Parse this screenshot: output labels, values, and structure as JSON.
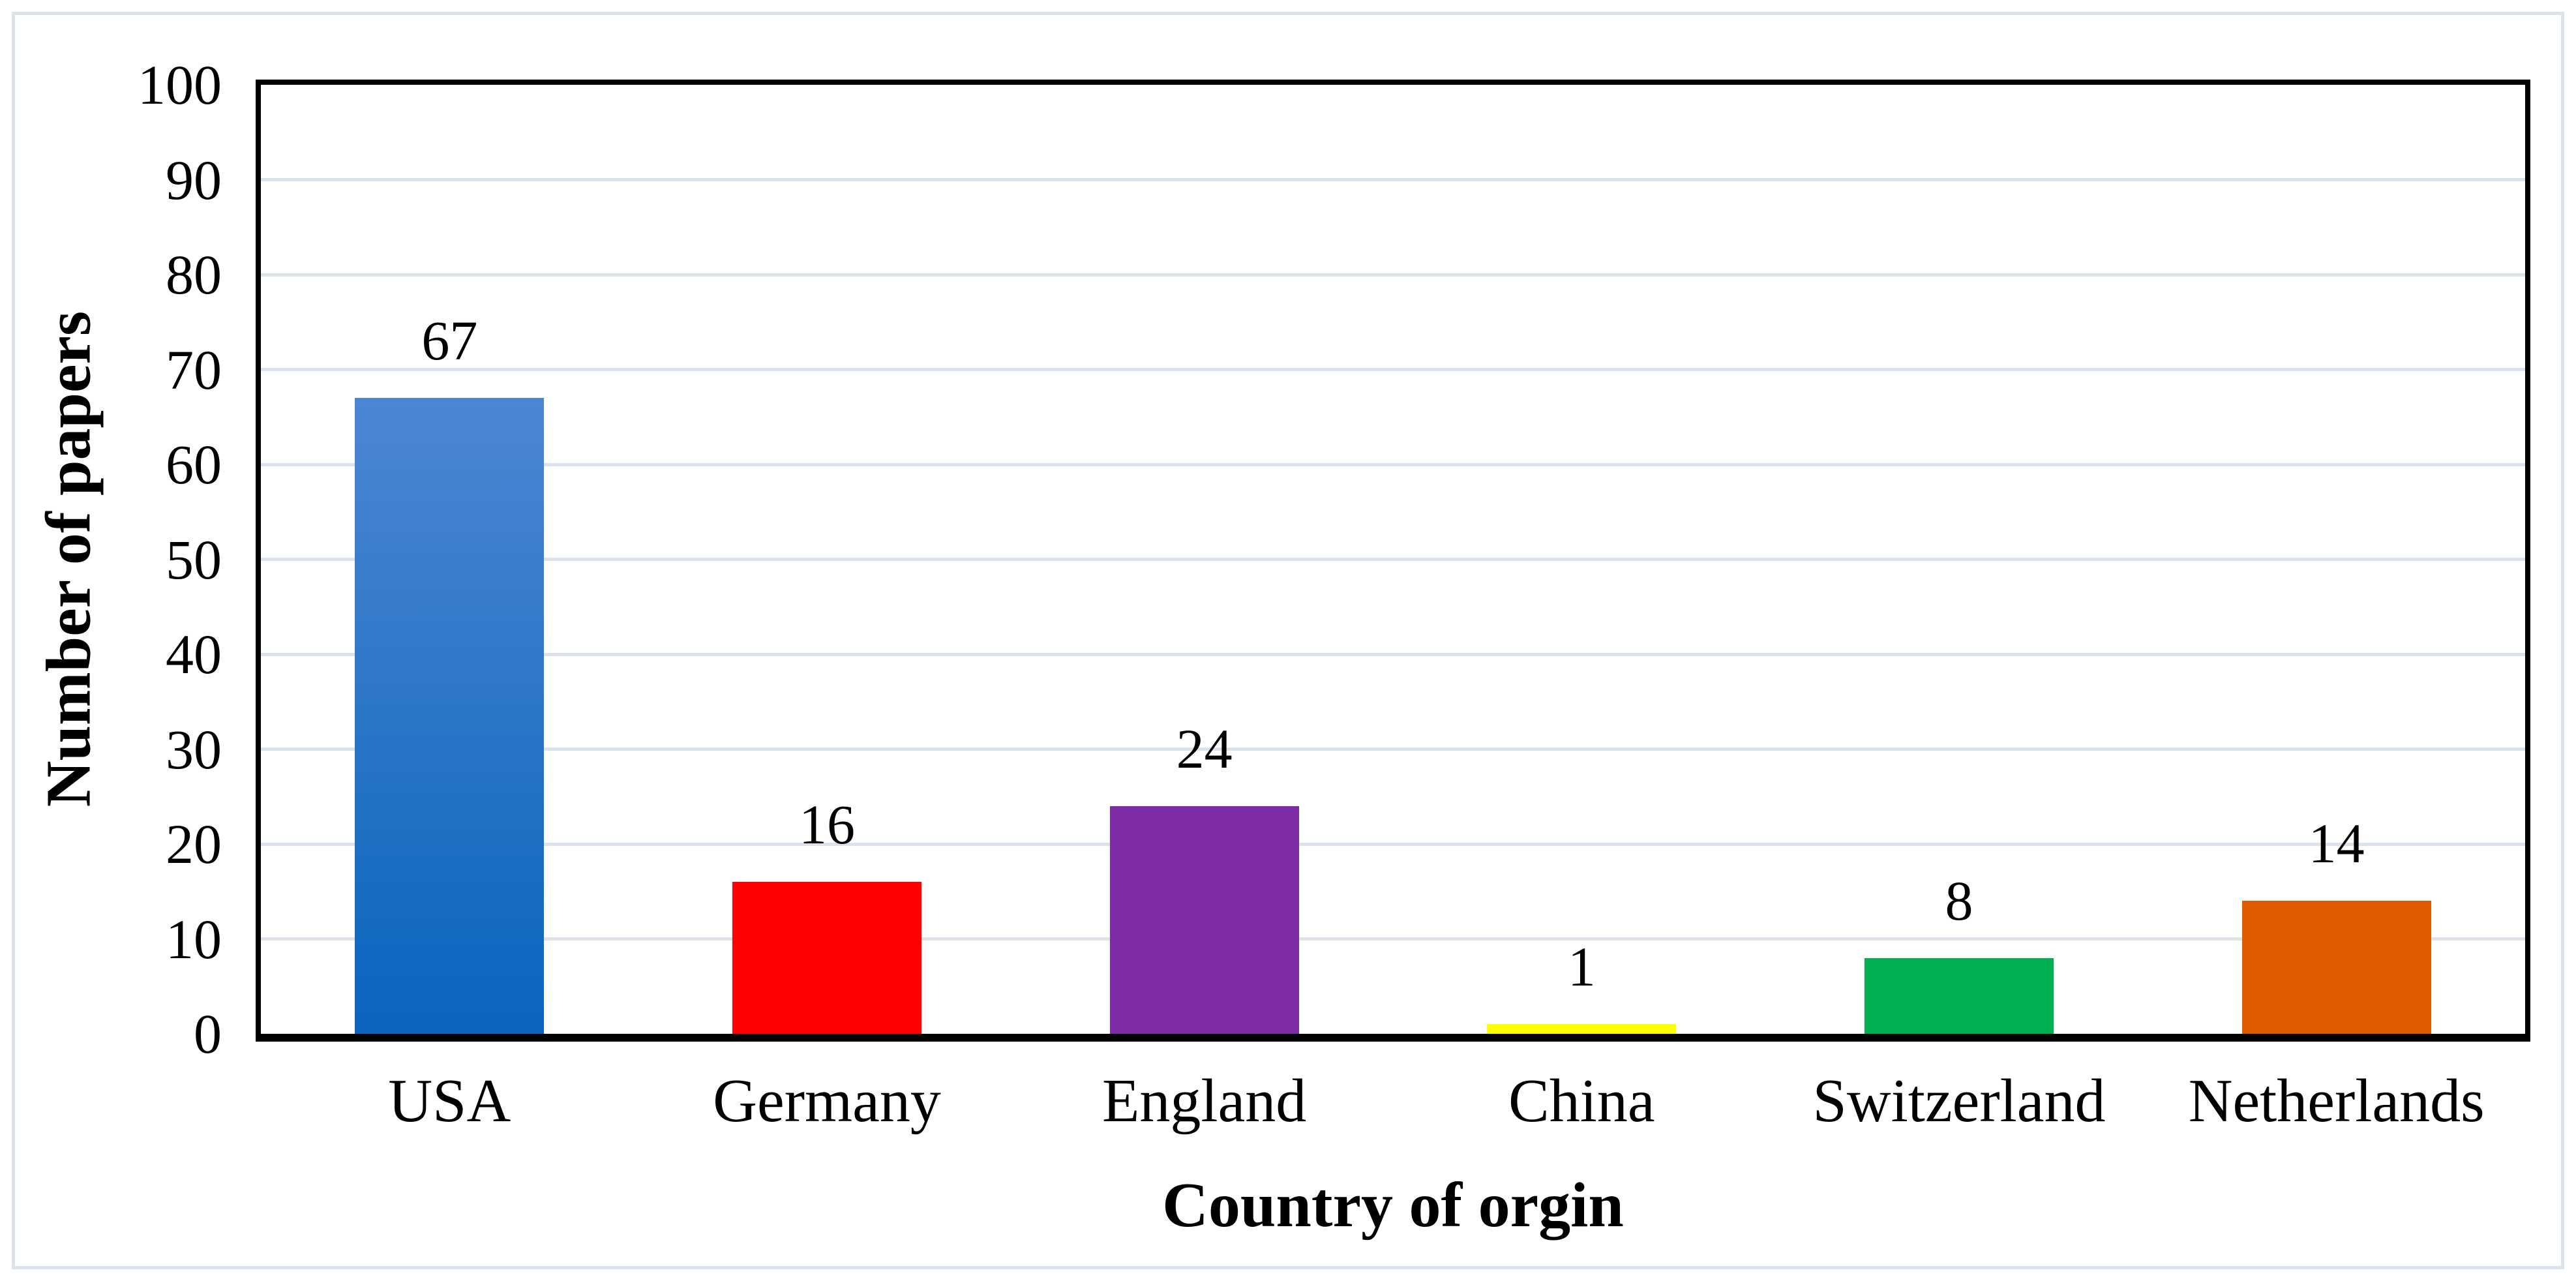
{
  "figure": {
    "background": "#ffffff",
    "outer_border_color": "#dce3eb",
    "plot_frame_color": "#000000"
  },
  "chart_data": {
    "type": "bar",
    "title": "",
    "xlabel": "Country of orgin",
    "ylabel": "Number of papers",
    "categories": [
      "USA",
      "Germany",
      "England",
      "China",
      "Switzerland",
      "Netherlands"
    ],
    "values": [
      67,
      16,
      24,
      1,
      8,
      14
    ],
    "data_labels": [
      "67",
      "16",
      "24",
      "1",
      "8",
      "14"
    ],
    "bar_colors": [
      {
        "top": "#4C87D3",
        "bottom": "#0A64BE"
      },
      {
        "top": "#FF0000",
        "bottom": "#FF0000"
      },
      {
        "top": "#7D2CA5",
        "bottom": "#7D2CA5"
      },
      {
        "top": "#FFFF00",
        "bottom": "#FFFF00"
      },
      {
        "top": "#00B050",
        "bottom": "#00B050"
      },
      {
        "top": "#E05A00",
        "bottom": "#E05A00"
      }
    ],
    "ylim": [
      0,
      100
    ],
    "yticks": [
      0,
      10,
      20,
      30,
      40,
      50,
      60,
      70,
      80,
      90,
      100
    ],
    "grid": true,
    "gridline_color": "#DCE3EB",
    "legend_position": "none",
    "data_labels_shown": true
  }
}
